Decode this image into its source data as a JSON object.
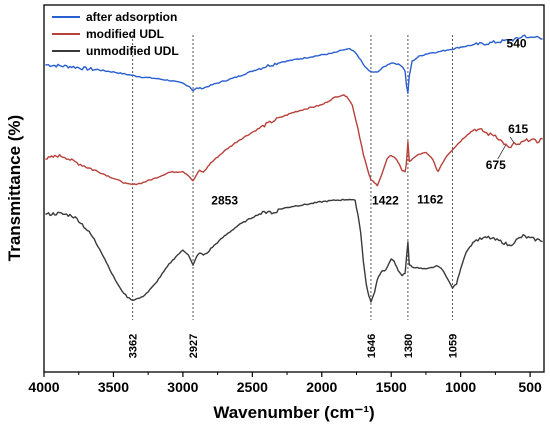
{
  "chart_data": {
    "type": "line",
    "xlabel": "Wavenumber (cm⁻¹)",
    "ylabel": "Transmittance (%)",
    "xlim": [
      4000,
      400
    ],
    "x_reversed": true,
    "xticks": [
      4000,
      3500,
      3000,
      2500,
      2000,
      1500,
      1000,
      500
    ],
    "yticks_shown": false,
    "legend_position": "top-left",
    "series": [
      {
        "name": "after adsorption",
        "color": "#2a5fcf",
        "points": [
          [
            3990,
            97.8
          ],
          [
            3900,
            97.6
          ],
          [
            3800,
            97.4
          ],
          [
            3700,
            97.0
          ],
          [
            3600,
            96.7
          ],
          [
            3500,
            96.3
          ],
          [
            3400,
            95.8
          ],
          [
            3300,
            95.3
          ],
          [
            3200,
            95.0
          ],
          [
            3100,
            94.6
          ],
          [
            3000,
            94.0
          ],
          [
            2950,
            93.3
          ],
          [
            2927,
            92.5
          ],
          [
            2900,
            93.0
          ],
          [
            2853,
            93.0
          ],
          [
            2800,
            93.6
          ],
          [
            2700,
            94.5
          ],
          [
            2600,
            95.4
          ],
          [
            2500,
            96.5
          ],
          [
            2400,
            97.5
          ],
          [
            2300,
            98.3
          ],
          [
            2200,
            98.8
          ],
          [
            2100,
            99.3
          ],
          [
            2000,
            99.8
          ],
          [
            1950,
            100.0
          ],
          [
            1900,
            100.3
          ],
          [
            1850,
            100.8
          ],
          [
            1800,
            101.0
          ],
          [
            1760,
            100.3
          ],
          [
            1730,
            99.2
          ],
          [
            1700,
            97.8
          ],
          [
            1660,
            96.5
          ],
          [
            1620,
            96.2
          ],
          [
            1590,
            96.5
          ],
          [
            1550,
            97.4
          ],
          [
            1500,
            98.2
          ],
          [
            1460,
            98.0
          ],
          [
            1422,
            97.5
          ],
          [
            1400,
            96.5
          ],
          [
            1390,
            93.5
          ],
          [
            1380,
            92.0
          ],
          [
            1370,
            95.5
          ],
          [
            1350,
            98.5
          ],
          [
            1300,
            99.5
          ],
          [
            1250,
            100.0
          ],
          [
            1200,
            100.3
          ],
          [
            1162,
            100.4
          ],
          [
            1100,
            100.8
          ],
          [
            1059,
            101.0
          ],
          [
            1000,
            101.4
          ],
          [
            900,
            101.9
          ],
          [
            800,
            102.2
          ],
          [
            700,
            102.6
          ],
          [
            600,
            103.0
          ],
          [
            540,
            103.8
          ],
          [
            500,
            103.2
          ],
          [
            450,
            103.5
          ],
          [
            410,
            103.3
          ]
        ]
      },
      {
        "name": "modified UDL",
        "color": "#b8413a",
        "points": [
          [
            3990,
            78.5
          ],
          [
            3900,
            79.2
          ],
          [
            3850,
            79.0
          ],
          [
            3800,
            78.2
          ],
          [
            3700,
            77.0
          ],
          [
            3600,
            75.8
          ],
          [
            3500,
            74.6
          ],
          [
            3400,
            73.4
          ],
          [
            3362,
            73.3
          ],
          [
            3300,
            73.6
          ],
          [
            3200,
            74.6
          ],
          [
            3100,
            75.8
          ],
          [
            3000,
            76.0
          ],
          [
            2960,
            75.2
          ],
          [
            2927,
            74.0
          ],
          [
            2900,
            75.4
          ],
          [
            2880,
            76.2
          ],
          [
            2853,
            75.8
          ],
          [
            2830,
            76.6
          ],
          [
            2800,
            77.7
          ],
          [
            2700,
            80.2
          ],
          [
            2600,
            82.3
          ],
          [
            2500,
            84.0
          ],
          [
            2400,
            85.6
          ],
          [
            2300,
            87.0
          ],
          [
            2200,
            88.1
          ],
          [
            2100,
            88.9
          ],
          [
            2000,
            89.6
          ],
          [
            1950,
            90.4
          ],
          [
            1900,
            91.2
          ],
          [
            1850,
            91.6
          ],
          [
            1820,
            91.4
          ],
          [
            1780,
            89.5
          ],
          [
            1740,
            84.8
          ],
          [
            1700,
            79.5
          ],
          [
            1660,
            75.3
          ],
          [
            1646,
            74.3
          ],
          [
            1620,
            73.6
          ],
          [
            1600,
            73.2
          ],
          [
            1570,
            75.2
          ],
          [
            1530,
            78.5
          ],
          [
            1500,
            79.3
          ],
          [
            1470,
            78.7
          ],
          [
            1440,
            77.4
          ],
          [
            1422,
            76.2
          ],
          [
            1400,
            75.8
          ],
          [
            1390,
            78.0
          ],
          [
            1380,
            82.0
          ],
          [
            1370,
            78.0
          ],
          [
            1350,
            78.5
          ],
          [
            1300,
            79.5
          ],
          [
            1250,
            79.8
          ],
          [
            1200,
            78.5
          ],
          [
            1180,
            76.8
          ],
          [
            1162,
            76.0
          ],
          [
            1140,
            77.3
          ],
          [
            1100,
            79.2
          ],
          [
            1059,
            80.5
          ],
          [
            1000,
            82.2
          ],
          [
            950,
            83.6
          ],
          [
            900,
            84.6
          ],
          [
            850,
            84.4
          ],
          [
            800,
            83.6
          ],
          [
            750,
            83.4
          ],
          [
            700,
            82.0
          ],
          [
            675,
            81.4
          ],
          [
            650,
            80.6
          ],
          [
            615,
            81.8
          ],
          [
            600,
            81.2
          ],
          [
            550,
            82.0
          ],
          [
            500,
            82.6
          ],
          [
            450,
            82.0
          ],
          [
            410,
            82.8
          ]
        ]
      },
      {
        "name": "unmodified UDL",
        "color": "#3a3a3a",
        "points": [
          [
            3990,
            67.2
          ],
          [
            3900,
            67.4
          ],
          [
            3800,
            67.0
          ],
          [
            3750,
            66.0
          ],
          [
            3700,
            64.4
          ],
          [
            3650,
            62.6
          ],
          [
            3600,
            60.2
          ],
          [
            3550,
            57.4
          ],
          [
            3500,
            54.5
          ],
          [
            3450,
            52.0
          ],
          [
            3400,
            50.3
          ],
          [
            3362,
            49.7
          ],
          [
            3300,
            50.2
          ],
          [
            3250,
            51.4
          ],
          [
            3200,
            53.0
          ],
          [
            3150,
            55.0
          ],
          [
            3100,
            57.0
          ],
          [
            3050,
            58.6
          ],
          [
            3000,
            59.9
          ],
          [
            2960,
            59.0
          ],
          [
            2927,
            56.8
          ],
          [
            2900,
            58.6
          ],
          [
            2880,
            59.4
          ],
          [
            2853,
            58.9
          ],
          [
            2820,
            59.4
          ],
          [
            2800,
            60.2
          ],
          [
            2700,
            62.8
          ],
          [
            2600,
            65.0
          ],
          [
            2500,
            66.6
          ],
          [
            2450,
            67.3
          ],
          [
            2400,
            67.7
          ],
          [
            2380,
            68.0
          ],
          [
            2360,
            67.3
          ],
          [
            2300,
            68.3
          ],
          [
            2200,
            68.9
          ],
          [
            2100,
            69.3
          ],
          [
            2000,
            69.8
          ],
          [
            1900,
            70.1
          ],
          [
            1800,
            70.3
          ],
          [
            1760,
            70.0
          ],
          [
            1740,
            67.2
          ],
          [
            1720,
            63.5
          ],
          [
            1700,
            57.5
          ],
          [
            1680,
            53.0
          ],
          [
            1660,
            50.4
          ],
          [
            1646,
            49.4
          ],
          [
            1620,
            51.2
          ],
          [
            1600,
            54.0
          ],
          [
            1570,
            55.6
          ],
          [
            1540,
            55.8
          ],
          [
            1500,
            58.0
          ],
          [
            1480,
            57.8
          ],
          [
            1450,
            55.6
          ],
          [
            1422,
            54.7
          ],
          [
            1400,
            55.2
          ],
          [
            1390,
            58.5
          ],
          [
            1380,
            61.5
          ],
          [
            1370,
            57.0
          ],
          [
            1350,
            56.5
          ],
          [
            1300,
            56.2
          ],
          [
            1250,
            56.0
          ],
          [
            1200,
            56.4
          ],
          [
            1162,
            56.7
          ],
          [
            1120,
            55.5
          ],
          [
            1080,
            53.2
          ],
          [
            1059,
            52.2
          ],
          [
            1030,
            53.0
          ],
          [
            1000,
            56.2
          ],
          [
            960,
            59.6
          ],
          [
            900,
            61.8
          ],
          [
            850,
            62.2
          ],
          [
            800,
            62.5
          ],
          [
            750,
            62.0
          ],
          [
            700,
            61.6
          ],
          [
            650,
            60.8
          ],
          [
            600,
            61.9
          ],
          [
            550,
            62.8
          ],
          [
            500,
            62.3
          ],
          [
            450,
            62.0
          ],
          [
            410,
            61.9
          ]
        ]
      }
    ],
    "guide_lines": [
      {
        "x": 3362,
        "label": "3362"
      },
      {
        "x": 2927,
        "label": "2927"
      },
      {
        "x": 1646,
        "label": "1646"
      },
      {
        "x": 1380,
        "label": "1380"
      },
      {
        "x": 1059,
        "label": "1059"
      }
    ],
    "annotations": [
      {
        "label": "540",
        "x": 540,
        "y": 103.8
      },
      {
        "label": "2853",
        "x": 2853,
        "y": 75.8
      },
      {
        "label": "1422",
        "x": 1422,
        "y": 76.2
      },
      {
        "label": "1162",
        "x": 1162,
        "y": 76.0
      },
      {
        "label": "675",
        "x": 675,
        "y": 81.4
      },
      {
        "label": "615",
        "x": 615,
        "y": 81.8
      }
    ],
    "ylim": [
      35,
      110
    ]
  }
}
